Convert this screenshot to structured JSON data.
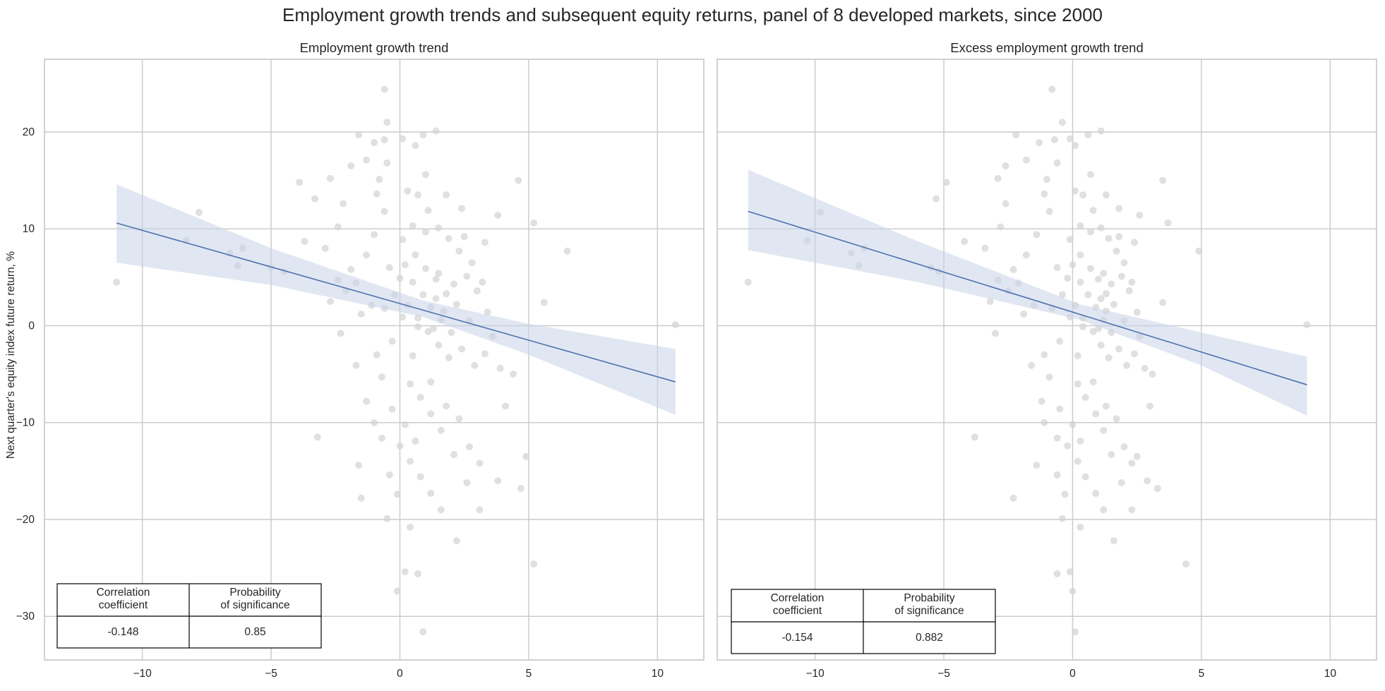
{
  "suptitle": "Employment growth trends and subsequent equity returns, panel of 8 developed markets, since 2000",
  "colors": {
    "points": "#d3d3d3",
    "regression_line": "#4c72b0",
    "confidence_band": "#c8d4e8",
    "grid": "#cccccc",
    "axes_frame": "#cccccc",
    "text": "#262626"
  },
  "chart_data": [
    {
      "type": "scatter",
      "title": "Employment growth trend",
      "xlabel": "",
      "ylabel": "Next quarter's equity index future return, %",
      "xlim": [
        -13.8,
        11.8
      ],
      "ylim": [
        -34.5,
        27.5
      ],
      "xticks": [
        -10,
        -5,
        0,
        5,
        10
      ],
      "yticks": [
        -30,
        -20,
        -10,
        0,
        10,
        20
      ],
      "xtick_labels": [
        "−10",
        "−5",
        "0",
        "5",
        "10"
      ],
      "ytick_labels": [
        "−30",
        "−20",
        "−10",
        "0",
        "10",
        "20"
      ],
      "grid": true,
      "regression": {
        "x_range": [
          -11.0,
          10.7
        ],
        "y_start": 10.6,
        "y_end": -5.8,
        "ci_upper": [
          [
            -11.0,
            14.6
          ],
          [
            -5.0,
            8.0
          ],
          [
            0.9,
            2.6
          ],
          [
            5.0,
            0.2
          ],
          [
            10.7,
            -2.4
          ]
        ],
        "ci_lower": [
          [
            -11.0,
            6.5
          ],
          [
            -5.0,
            4.2
          ],
          [
            0.9,
            0.9
          ],
          [
            5.0,
            -3.0
          ],
          [
            10.7,
            -9.2
          ]
        ]
      },
      "stats_table": {
        "headers": [
          "Correlation\ncoefficient",
          "Probability\nof significance"
        ],
        "values": [
          "-0.148",
          "0.85"
        ]
      },
      "points": [
        [
          -11.0,
          4.5
        ],
        [
          -7.8,
          11.7
        ],
        [
          -8.3,
          8.8
        ],
        [
          -6.1,
          8.0
        ],
        [
          -6.3,
          6.2
        ],
        [
          -6.6,
          7.5
        ],
        [
          -5.0,
          6.0
        ],
        [
          -4.5,
          5.6
        ],
        [
          -3.9,
          14.8
        ],
        [
          -3.7,
          8.7
        ],
        [
          -3.3,
          13.1
        ],
        [
          -2.9,
          8.0
        ],
        [
          -2.7,
          15.2
        ],
        [
          -2.2,
          12.6
        ],
        [
          -2.4,
          10.2
        ],
        [
          -2.1,
          3.6
        ],
        [
          -2.3,
          -0.8
        ],
        [
          -1.6,
          19.7
        ],
        [
          -1.3,
          17.1
        ],
        [
          -1.9,
          16.5
        ],
        [
          -1.7,
          4.4
        ],
        [
          -1.1,
          2.1
        ],
        [
          -1.0,
          18.9
        ],
        [
          -0.5,
          21.0
        ],
        [
          -0.6,
          24.4
        ],
        [
          -0.6,
          19.2
        ],
        [
          -0.5,
          16.8
        ],
        [
          -0.8,
          15.1
        ],
        [
          -1.7,
          -4.1
        ],
        [
          -1.3,
          -7.8
        ],
        [
          -1.6,
          -14.4
        ],
        [
          -1.5,
          -17.8
        ],
        [
          -1.0,
          -10.0
        ],
        [
          -0.7,
          -11.6
        ],
        [
          -0.5,
          -19.9
        ],
        [
          -0.1,
          -27.4
        ],
        [
          0.2,
          -25.4
        ],
        [
          0.7,
          -25.6
        ],
        [
          0.9,
          -31.6
        ],
        [
          0.4,
          -20.8
        ],
        [
          -3.2,
          -11.5
        ],
        [
          3.1,
          -19.0
        ],
        [
          3.8,
          -16.0
        ],
        [
          4.7,
          -16.8
        ],
        [
          4.9,
          -13.5
        ],
        [
          5.2,
          -24.6
        ],
        [
          5.2,
          10.6
        ],
        [
          6.5,
          7.7
        ],
        [
          10.7,
          0.1
        ],
        [
          4.6,
          15.0
        ],
        [
          5.6,
          2.4
        ],
        [
          4.4,
          -5.0
        ],
        [
          3.8,
          11.4
        ],
        [
          3.3,
          8.6
        ],
        [
          2.2,
          -22.2
        ],
        [
          1.6,
          -19.0
        ],
        [
          1.4,
          20.1
        ],
        [
          0.9,
          19.7
        ],
        [
          0.6,
          18.6
        ],
        [
          0.1,
          19.3
        ],
        [
          -0.6,
          11.8
        ],
        [
          -1.0,
          9.4
        ],
        [
          -1.3,
          7.3
        ],
        [
          -1.9,
          5.8
        ],
        [
          -2.4,
          4.7
        ],
        [
          -2.7,
          2.5
        ],
        [
          -1.5,
          1.2
        ],
        [
          -0.3,
          -1.6
        ],
        [
          0.5,
          -3.1
        ],
        [
          1.2,
          -5.8
        ],
        [
          1.8,
          -8.3
        ],
        [
          2.3,
          -9.6
        ],
        [
          2.7,
          -12.5
        ],
        [
          3.1,
          -14.2
        ],
        [
          0.7,
          13.5
        ],
        [
          1.1,
          11.9
        ],
        [
          1.5,
          10.1
        ],
        [
          1.9,
          9.0
        ],
        [
          2.3,
          7.7
        ],
        [
          2.6,
          5.1
        ],
        [
          3.0,
          3.6
        ],
        [
          3.4,
          1.4
        ],
        [
          0.2,
          6.3
        ],
        [
          0.5,
          4.5
        ],
        [
          0.9,
          3.2
        ],
        [
          1.2,
          1.9
        ],
        [
          1.6,
          0.6
        ],
        [
          2.0,
          -0.7
        ],
        [
          2.4,
          -2.4
        ],
        [
          2.9,
          -4.1
        ],
        [
          -0.2,
          3.2
        ],
        [
          0.3,
          2.1
        ],
        [
          0.7,
          0.8
        ],
        [
          1.1,
          -0.6
        ],
        [
          1.5,
          -2.0
        ],
        [
          1.9,
          -3.3
        ],
        [
          0.1,
          8.9
        ],
        [
          0.6,
          7.3
        ],
        [
          1.0,
          5.9
        ],
        [
          1.4,
          4.8
        ],
        [
          1.8,
          3.3
        ],
        [
          2.2,
          2.2
        ],
        [
          -0.4,
          6.0
        ],
        [
          0.0,
          4.9
        ],
        [
          0.4,
          -6.0
        ],
        [
          0.8,
          -7.4
        ],
        [
          1.2,
          -9.1
        ],
        [
          1.6,
          -10.8
        ],
        [
          0.0,
          -12.4
        ],
        [
          0.4,
          -14.0
        ],
        [
          0.8,
          -15.6
        ],
        [
          1.2,
          -17.3
        ],
        [
          1.3,
          -0.3
        ],
        [
          1.4,
          2.8
        ],
        [
          1.5,
          5.4
        ],
        [
          1.0,
          9.7
        ],
        [
          0.5,
          10.3
        ],
        [
          2.5,
          9.2
        ],
        [
          2.8,
          6.5
        ],
        [
          3.2,
          4.5
        ],
        [
          3.6,
          -1.1
        ],
        [
          3.9,
          -4.4
        ],
        [
          -0.9,
          -3.0
        ],
        [
          -0.7,
          -5.3
        ],
        [
          -0.3,
          -8.6
        ],
        [
          0.2,
          -10.2
        ],
        [
          0.6,
          -11.9
        ],
        [
          2.1,
          -13.3
        ],
        [
          2.6,
          -16.2
        ],
        [
          -0.4,
          -15.4
        ],
        [
          -0.1,
          -17.4
        ],
        [
          1.0,
          15.6
        ],
        [
          0.3,
          13.9
        ],
        [
          1.8,
          13.5
        ],
        [
          2.4,
          12.1
        ],
        [
          -0.9,
          13.6
        ],
        [
          0.7,
          -0.1
        ],
        [
          1.7,
          1.5
        ],
        [
          2.1,
          4.3
        ],
        [
          0.1,
          0.9
        ],
        [
          -0.6,
          1.8
        ],
        [
          2.7,
          0.5
        ],
        [
          3.3,
          -2.9
        ],
        [
          4.1,
          -8.3
        ]
      ]
    },
    {
      "type": "scatter",
      "title": "Excess employment growth trend",
      "xlabel": "",
      "ylabel": "",
      "xlim": [
        -13.8,
        11.8
      ],
      "ylim": [
        -34.5,
        27.5
      ],
      "xticks": [
        -10,
        -5,
        0,
        5,
        10
      ],
      "yticks": [
        -30,
        -20,
        -10,
        0,
        10,
        20
      ],
      "xtick_labels": [
        "−10",
        "−5",
        "0",
        "5",
        "10"
      ],
      "ytick_labels": [
        "−30",
        "−20",
        "−10",
        "0",
        "10",
        "20"
      ],
      "grid": true,
      "regression": {
        "x_range": [
          -12.6,
          9.1
        ],
        "y_start": 11.8,
        "y_end": -6.1,
        "ci_upper": [
          [
            -12.6,
            16.1
          ],
          [
            -6.0,
            8.7
          ],
          [
            0.3,
            2.2
          ],
          [
            5.0,
            -0.7
          ],
          [
            9.1,
            -3.2
          ]
        ],
        "ci_lower": [
          [
            -12.6,
            7.8
          ],
          [
            -6.0,
            4.5
          ],
          [
            0.3,
            0.6
          ],
          [
            5.0,
            -4.1
          ],
          [
            9.1,
            -9.3
          ]
        ]
      },
      "stats_table": {
        "headers": [
          "Correlation\ncoefficient",
          "Probability\nof significance"
        ],
        "values": [
          "-0.154",
          "0.882"
        ]
      },
      "points": [
        [
          -12.6,
          4.5
        ],
        [
          -9.8,
          11.7
        ],
        [
          -10.3,
          8.8
        ],
        [
          -8.1,
          8.0
        ],
        [
          -8.3,
          6.2
        ],
        [
          -8.6,
          7.5
        ],
        [
          -5.5,
          6.0
        ],
        [
          -5.2,
          5.6
        ],
        [
          -4.9,
          14.8
        ],
        [
          -4.2,
          8.7
        ],
        [
          -5.3,
          13.1
        ],
        [
          -3.4,
          8.0
        ],
        [
          -2.9,
          15.2
        ],
        [
          -2.6,
          12.6
        ],
        [
          -2.8,
          10.2
        ],
        [
          -2.5,
          3.6
        ],
        [
          -3.0,
          -0.8
        ],
        [
          -2.2,
          19.7
        ],
        [
          -1.8,
          17.1
        ],
        [
          -2.6,
          16.5
        ],
        [
          -2.1,
          4.4
        ],
        [
          -1.5,
          2.1
        ],
        [
          -1.3,
          18.9
        ],
        [
          -0.4,
          21.0
        ],
        [
          -0.8,
          24.4
        ],
        [
          -0.7,
          19.2
        ],
        [
          -0.6,
          16.8
        ],
        [
          -1.0,
          15.1
        ],
        [
          -1.6,
          -4.1
        ],
        [
          -1.2,
          -7.8
        ],
        [
          -1.4,
          -14.4
        ],
        [
          -2.3,
          -17.8
        ],
        [
          -1.1,
          -10.0
        ],
        [
          -0.6,
          -11.6
        ],
        [
          -0.4,
          -19.9
        ],
        [
          0.0,
          -27.4
        ],
        [
          -0.1,
          -25.4
        ],
        [
          -0.6,
          -25.6
        ],
        [
          0.1,
          -31.6
        ],
        [
          0.3,
          -20.8
        ],
        [
          -3.8,
          -11.5
        ],
        [
          2.3,
          -19.0
        ],
        [
          2.9,
          -16.0
        ],
        [
          3.3,
          -16.8
        ],
        [
          2.5,
          -13.5
        ],
        [
          4.4,
          -24.6
        ],
        [
          3.7,
          10.6
        ],
        [
          4.9,
          7.7
        ],
        [
          9.1,
          0.1
        ],
        [
          3.5,
          15.0
        ],
        [
          3.5,
          2.4
        ],
        [
          3.1,
          -5.0
        ],
        [
          2.6,
          11.4
        ],
        [
          2.4,
          8.6
        ],
        [
          1.6,
          -22.2
        ],
        [
          1.2,
          -19.0
        ],
        [
          1.1,
          20.1
        ],
        [
          0.6,
          19.7
        ],
        [
          0.1,
          18.6
        ],
        [
          -0.1,
          19.3
        ],
        [
          -0.9,
          11.8
        ],
        [
          -1.4,
          9.4
        ],
        [
          -1.8,
          7.3
        ],
        [
          -2.3,
          5.8
        ],
        [
          -2.9,
          4.7
        ],
        [
          -3.2,
          2.5
        ],
        [
          -1.9,
          1.2
        ],
        [
          -0.5,
          -1.6
        ],
        [
          0.2,
          -3.1
        ],
        [
          0.8,
          -5.8
        ],
        [
          1.3,
          -8.3
        ],
        [
          1.7,
          -9.6
        ],
        [
          2.0,
          -12.5
        ],
        [
          2.3,
          -14.2
        ],
        [
          0.4,
          13.5
        ],
        [
          0.8,
          11.9
        ],
        [
          1.1,
          10.1
        ],
        [
          1.4,
          9.0
        ],
        [
          1.7,
          7.7
        ],
        [
          1.9,
          5.1
        ],
        [
          2.2,
          3.6
        ],
        [
          2.5,
          1.4
        ],
        [
          0.0,
          6.3
        ],
        [
          0.3,
          4.5
        ],
        [
          0.6,
          3.2
        ],
        [
          0.9,
          1.9
        ],
        [
          1.2,
          0.6
        ],
        [
          1.5,
          -0.7
        ],
        [
          1.8,
          -2.4
        ],
        [
          2.1,
          -4.1
        ],
        [
          -0.4,
          3.2
        ],
        [
          0.1,
          2.1
        ],
        [
          0.4,
          0.8
        ],
        [
          0.8,
          -0.6
        ],
        [
          1.1,
          -2.0
        ],
        [
          1.4,
          -3.3
        ],
        [
          -0.1,
          8.9
        ],
        [
          0.3,
          7.3
        ],
        [
          0.7,
          5.9
        ],
        [
          1.0,
          4.8
        ],
        [
          1.3,
          3.3
        ],
        [
          1.6,
          2.2
        ],
        [
          -0.6,
          6.0
        ],
        [
          -0.2,
          4.9
        ],
        [
          0.2,
          -6.0
        ],
        [
          0.5,
          -7.4
        ],
        [
          0.9,
          -9.1
        ],
        [
          1.2,
          -10.8
        ],
        [
          -0.2,
          -12.4
        ],
        [
          0.2,
          -14.0
        ],
        [
          0.5,
          -15.6
        ],
        [
          0.9,
          -17.3
        ],
        [
          1.0,
          -0.3
        ],
        [
          1.1,
          2.8
        ],
        [
          1.2,
          5.4
        ],
        [
          0.7,
          9.7
        ],
        [
          0.3,
          10.3
        ],
        [
          1.8,
          9.2
        ],
        [
          2.0,
          6.5
        ],
        [
          2.3,
          4.5
        ],
        [
          2.6,
          -1.1
        ],
        [
          2.8,
          -4.4
        ],
        [
          -1.1,
          -3.0
        ],
        [
          -0.9,
          -5.3
        ],
        [
          -0.5,
          -8.6
        ],
        [
          0.0,
          -10.2
        ],
        [
          0.3,
          -11.9
        ],
        [
          1.5,
          -13.3
        ],
        [
          1.9,
          -16.2
        ],
        [
          -0.6,
          -15.4
        ],
        [
          -0.3,
          -17.4
        ],
        [
          0.7,
          15.6
        ],
        [
          0.1,
          13.9
        ],
        [
          1.3,
          13.5
        ],
        [
          1.8,
          12.1
        ],
        [
          -1.1,
          13.6
        ],
        [
          0.4,
          -0.1
        ],
        [
          1.3,
          1.5
        ],
        [
          1.5,
          4.3
        ],
        [
          -0.1,
          0.9
        ],
        [
          -0.8,
          1.8
        ],
        [
          2.0,
          0.5
        ],
        [
          2.4,
          -2.9
        ],
        [
          3.0,
          -8.3
        ]
      ]
    }
  ]
}
